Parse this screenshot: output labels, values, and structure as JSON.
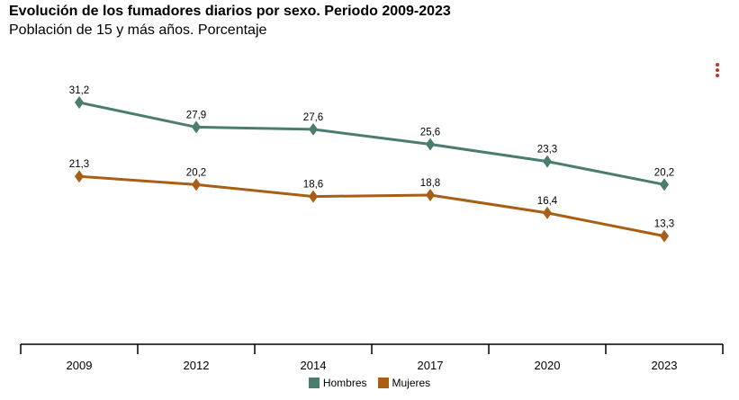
{
  "menu": {
    "icon": "kebab-menu-icon",
    "color": "#c0392b"
  },
  "chart_data": {
    "type": "line",
    "title": "Evolución de los fumadores diarios por sexo. Periodo 2009-2023",
    "subtitle": "Población de 15 y más años. Porcentaje",
    "categories": [
      "2009",
      "2012",
      "2014",
      "2017",
      "2020",
      "2023"
    ],
    "ylim": [
      0,
      36
    ],
    "grid": false,
    "legend_position": "bottom",
    "series": [
      {
        "name": "Hombres",
        "color": "#4a7c70",
        "values": [
          31.2,
          27.9,
          27.6,
          25.6,
          23.3,
          20.2
        ],
        "labels": [
          "31,2",
          "27,9",
          "27,6",
          "25,6",
          "23,3",
          "20,2"
        ]
      },
      {
        "name": "Mujeres",
        "color": "#a85f15",
        "values": [
          21.3,
          20.2,
          18.6,
          18.8,
          16.4,
          13.3
        ],
        "labels": [
          "21,3",
          "20,2",
          "18,6",
          "18,8",
          "16,4",
          "13,3"
        ]
      }
    ]
  }
}
